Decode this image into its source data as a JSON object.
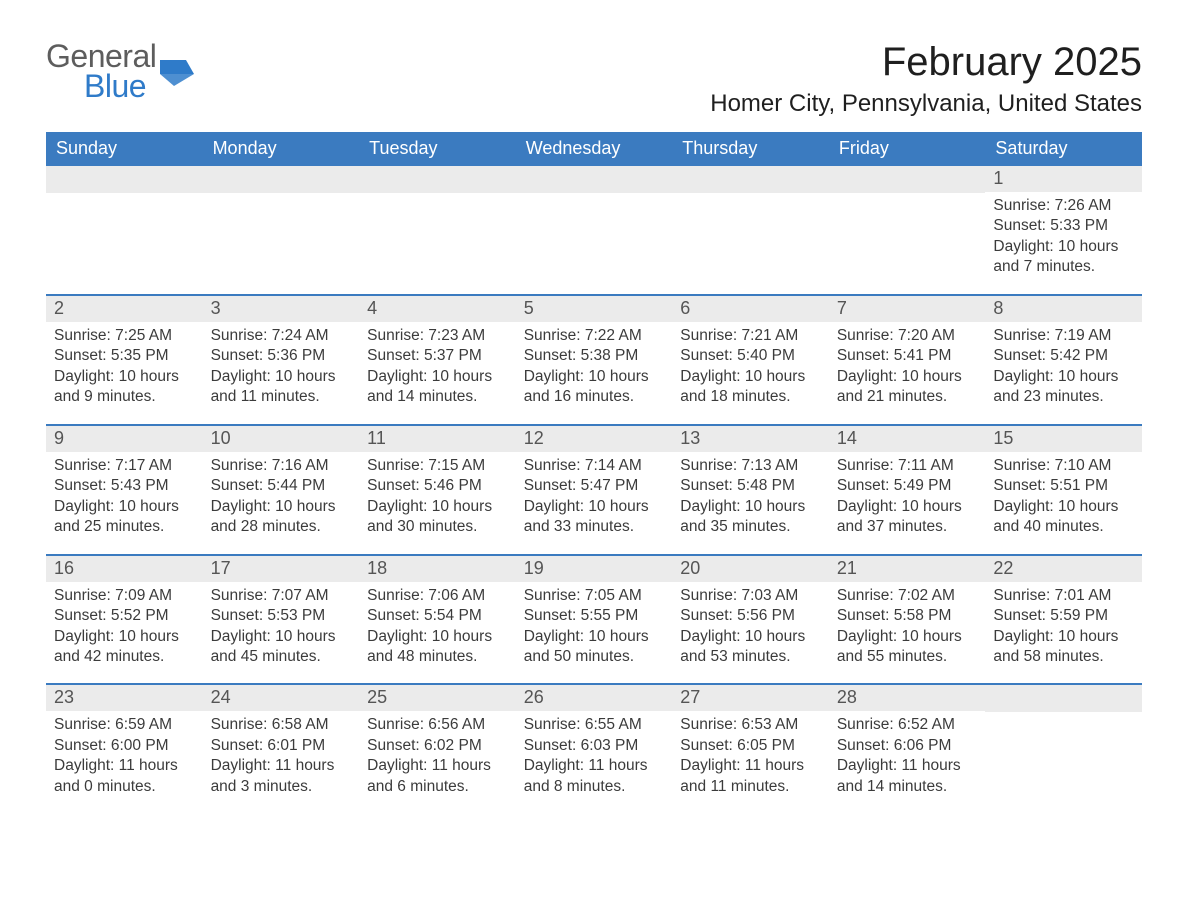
{
  "logo": {
    "word1": "General",
    "word2": "Blue"
  },
  "title": "February 2025",
  "location": "Homer City, Pennsylvania, United States",
  "colors": {
    "header_blue": "#3b7bc0",
    "row_separator": "#3b7bc0",
    "daynum_bg": "#ebebeb",
    "text": "#3b3b3b",
    "logo_gray": "#5d5d5d",
    "logo_blue": "#2f7bc9",
    "background": "#ffffff"
  },
  "layout": {
    "columns": 7,
    "weekday_fontsize": 18,
    "title_fontsize": 40,
    "location_fontsize": 24,
    "detail_fontsize": 15.5
  },
  "weekdays": [
    "Sunday",
    "Monday",
    "Tuesday",
    "Wednesday",
    "Thursday",
    "Friday",
    "Saturday"
  ],
  "weeks": [
    [
      null,
      null,
      null,
      null,
      null,
      null,
      {
        "n": "1",
        "sr": "Sunrise: 7:26 AM",
        "ss": "Sunset: 5:33 PM",
        "dl": "Daylight: 10 hours and 7 minutes."
      }
    ],
    [
      {
        "n": "2",
        "sr": "Sunrise: 7:25 AM",
        "ss": "Sunset: 5:35 PM",
        "dl": "Daylight: 10 hours and 9 minutes."
      },
      {
        "n": "3",
        "sr": "Sunrise: 7:24 AM",
        "ss": "Sunset: 5:36 PM",
        "dl": "Daylight: 10 hours and 11 minutes."
      },
      {
        "n": "4",
        "sr": "Sunrise: 7:23 AM",
        "ss": "Sunset: 5:37 PM",
        "dl": "Daylight: 10 hours and 14 minutes."
      },
      {
        "n": "5",
        "sr": "Sunrise: 7:22 AM",
        "ss": "Sunset: 5:38 PM",
        "dl": "Daylight: 10 hours and 16 minutes."
      },
      {
        "n": "6",
        "sr": "Sunrise: 7:21 AM",
        "ss": "Sunset: 5:40 PM",
        "dl": "Daylight: 10 hours and 18 minutes."
      },
      {
        "n": "7",
        "sr": "Sunrise: 7:20 AM",
        "ss": "Sunset: 5:41 PM",
        "dl": "Daylight: 10 hours and 21 minutes."
      },
      {
        "n": "8",
        "sr": "Sunrise: 7:19 AM",
        "ss": "Sunset: 5:42 PM",
        "dl": "Daylight: 10 hours and 23 minutes."
      }
    ],
    [
      {
        "n": "9",
        "sr": "Sunrise: 7:17 AM",
        "ss": "Sunset: 5:43 PM",
        "dl": "Daylight: 10 hours and 25 minutes."
      },
      {
        "n": "10",
        "sr": "Sunrise: 7:16 AM",
        "ss": "Sunset: 5:44 PM",
        "dl": "Daylight: 10 hours and 28 minutes."
      },
      {
        "n": "11",
        "sr": "Sunrise: 7:15 AM",
        "ss": "Sunset: 5:46 PM",
        "dl": "Daylight: 10 hours and 30 minutes."
      },
      {
        "n": "12",
        "sr": "Sunrise: 7:14 AM",
        "ss": "Sunset: 5:47 PM",
        "dl": "Daylight: 10 hours and 33 minutes."
      },
      {
        "n": "13",
        "sr": "Sunrise: 7:13 AM",
        "ss": "Sunset: 5:48 PM",
        "dl": "Daylight: 10 hours and 35 minutes."
      },
      {
        "n": "14",
        "sr": "Sunrise: 7:11 AM",
        "ss": "Sunset: 5:49 PM",
        "dl": "Daylight: 10 hours and 37 minutes."
      },
      {
        "n": "15",
        "sr": "Sunrise: 7:10 AM",
        "ss": "Sunset: 5:51 PM",
        "dl": "Daylight: 10 hours and 40 minutes."
      }
    ],
    [
      {
        "n": "16",
        "sr": "Sunrise: 7:09 AM",
        "ss": "Sunset: 5:52 PM",
        "dl": "Daylight: 10 hours and 42 minutes."
      },
      {
        "n": "17",
        "sr": "Sunrise: 7:07 AM",
        "ss": "Sunset: 5:53 PM",
        "dl": "Daylight: 10 hours and 45 minutes."
      },
      {
        "n": "18",
        "sr": "Sunrise: 7:06 AM",
        "ss": "Sunset: 5:54 PM",
        "dl": "Daylight: 10 hours and 48 minutes."
      },
      {
        "n": "19",
        "sr": "Sunrise: 7:05 AM",
        "ss": "Sunset: 5:55 PM",
        "dl": "Daylight: 10 hours and 50 minutes."
      },
      {
        "n": "20",
        "sr": "Sunrise: 7:03 AM",
        "ss": "Sunset: 5:56 PM",
        "dl": "Daylight: 10 hours and 53 minutes."
      },
      {
        "n": "21",
        "sr": "Sunrise: 7:02 AM",
        "ss": "Sunset: 5:58 PM",
        "dl": "Daylight: 10 hours and 55 minutes."
      },
      {
        "n": "22",
        "sr": "Sunrise: 7:01 AM",
        "ss": "Sunset: 5:59 PM",
        "dl": "Daylight: 10 hours and 58 minutes."
      }
    ],
    [
      {
        "n": "23",
        "sr": "Sunrise: 6:59 AM",
        "ss": "Sunset: 6:00 PM",
        "dl": "Daylight: 11 hours and 0 minutes."
      },
      {
        "n": "24",
        "sr": "Sunrise: 6:58 AM",
        "ss": "Sunset: 6:01 PM",
        "dl": "Daylight: 11 hours and 3 minutes."
      },
      {
        "n": "25",
        "sr": "Sunrise: 6:56 AM",
        "ss": "Sunset: 6:02 PM",
        "dl": "Daylight: 11 hours and 6 minutes."
      },
      {
        "n": "26",
        "sr": "Sunrise: 6:55 AM",
        "ss": "Sunset: 6:03 PM",
        "dl": "Daylight: 11 hours and 8 minutes."
      },
      {
        "n": "27",
        "sr": "Sunrise: 6:53 AM",
        "ss": "Sunset: 6:05 PM",
        "dl": "Daylight: 11 hours and 11 minutes."
      },
      {
        "n": "28",
        "sr": "Sunrise: 6:52 AM",
        "ss": "Sunset: 6:06 PM",
        "dl": "Daylight: 11 hours and 14 minutes."
      },
      null
    ]
  ]
}
